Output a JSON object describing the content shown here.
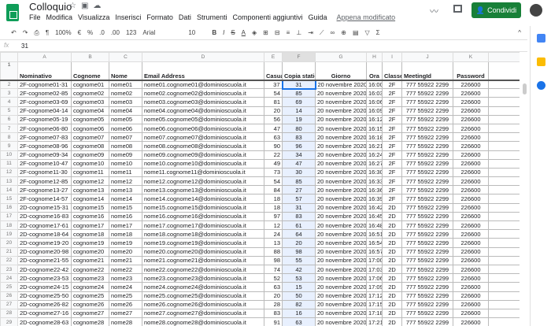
{
  "app": {
    "title": "Colloquio",
    "menu": [
      "File",
      "Modifica",
      "Visualizza",
      "Inserisci",
      "Formato",
      "Dati",
      "Strumenti",
      "Componenti aggiuntivi",
      "Guida"
    ],
    "last_edit": "Appena modificato",
    "share_label": "Condividi",
    "accent": "#188038"
  },
  "toolbar": {
    "zoom": "100%",
    "currency": "€",
    "percent": "%",
    "dec_less": ".0",
    "dec_more": ".00",
    "format": "123",
    "font": "Arial",
    "size": "10",
    "bold": "B",
    "italic": "I",
    "strike": "S",
    "color": "A",
    "sum": "Σ"
  },
  "formula": {
    "fx": "fx",
    "value": "31"
  },
  "columns": [
    "A",
    "B",
    "C",
    "D",
    "E",
    "F",
    "G",
    "H",
    "I",
    "J",
    "K",
    ""
  ],
  "headers": [
    "Nominativo",
    "Cognome",
    "Nome",
    "Email Address",
    "Casuale",
    "Copia statica",
    "Giorno",
    "Ora",
    "Classe",
    "MeetingId",
    "Password",
    ""
  ],
  "rows": [
    [
      "2F-cognome01-31",
      "cognome01",
      "nome01",
      "nome01.cognome01@dominioscuola.it",
      "37",
      "31",
      "20 novembre 2020",
      "16:00",
      "2F",
      "777 55922 2299",
      "226600"
    ],
    [
      "2F-cognome02-85",
      "cognome02",
      "nome02",
      "nome02.cognome02@dominioscuola.it",
      "54",
      "85",
      "20 novembre 2020",
      "16:03",
      "2F",
      "777 55922 2299",
      "226600"
    ],
    [
      "2F-cognome03-69",
      "cognome03",
      "nome03",
      "nome03.cognome03@dominioscuola.it",
      "81",
      "69",
      "20 novembre 2020",
      "16:06",
      "2F",
      "777 55922 2299",
      "226600"
    ],
    [
      "2F-cognome04-14",
      "cognome04",
      "nome04",
      "nome04.cognome04@dominioscuola.it",
      "20",
      "14",
      "20 novembre 2020",
      "16:09",
      "2F",
      "777 55922 2299",
      "226600"
    ],
    [
      "2F-cognome05-19",
      "cognome05",
      "nome05",
      "nome05.cognome05@dominioscuola.it",
      "56",
      "19",
      "20 novembre 2020",
      "16:12",
      "2F",
      "777 55922 2299",
      "226600"
    ],
    [
      "2F-cognome06-80",
      "cognome06",
      "nome06",
      "nome06.cognome06@dominioscuola.it",
      "47",
      "80",
      "20 novembre 2020",
      "16:15",
      "2F",
      "777 55922 2299",
      "226600"
    ],
    [
      "2F-cognome07-83",
      "cognome07",
      "nome07",
      "nome07.cognome07@dominioscuola.it",
      "63",
      "83",
      "20 novembre 2020",
      "16:18",
      "2F",
      "777 55922 2299",
      "226600"
    ],
    [
      "2F-cognome08-96",
      "cognome08",
      "nome08",
      "nome08.cognome08@dominioscuola.it",
      "90",
      "96",
      "20 novembre 2020",
      "16:21",
      "2F",
      "777 55922 2299",
      "226600"
    ],
    [
      "2F-cognome09-34",
      "cognome09",
      "nome09",
      "nome09.cognome09@dominioscuola.it",
      "22",
      "34",
      "20 novembre 2020",
      "16:24",
      "2F",
      "777 55922 2299",
      "226600"
    ],
    [
      "2F-cognome10-47",
      "cognome10",
      "nome10",
      "nome10.cognome10@dominioscuola.it",
      "49",
      "47",
      "20 novembre 2020",
      "16:27",
      "2F",
      "777 55922 2299",
      "226600"
    ],
    [
      "2F-cognome11-30",
      "cognome11",
      "nome11",
      "nome11.cognome11@dominioscuola.it",
      "73",
      "30",
      "20 novembre 2020",
      "16:30",
      "2F",
      "777 55922 2299",
      "226600"
    ],
    [
      "2F-cognome12-85",
      "cognome12",
      "nome12",
      "nome12.cognome12@dominioscuola.it",
      "54",
      "85",
      "20 novembre 2020",
      "16:33",
      "2F",
      "777 55922 2299",
      "226600"
    ],
    [
      "2F-cognome13-27",
      "cognome13",
      "nome13",
      "nome13.cognome13@dominioscuola.it",
      "84",
      "27",
      "20 novembre 2020",
      "16:36",
      "2F",
      "777 55922 2299",
      "226600"
    ],
    [
      "2F-cognome14-57",
      "cognome14",
      "nome14",
      "nome14.cognome14@dominioscuola.it",
      "18",
      "57",
      "20 novembre 2020",
      "16:39",
      "2F",
      "777 55922 2299",
      "226600"
    ],
    [
      "2D-cognome15-31",
      "cognome15",
      "nome15",
      "nome15.cognome15@dominioscuola.it",
      "18",
      "31",
      "20 novembre 2020",
      "16:42",
      "2D",
      "777 55922 2299",
      "226600"
    ],
    [
      "2D-cognome16-83",
      "cognome16",
      "nome16",
      "nome16.cognome16@dominioscuola.it",
      "97",
      "83",
      "20 novembre 2020",
      "16:45",
      "2D",
      "777 55922 2299",
      "226600"
    ],
    [
      "2D-cognome17-61",
      "cognome17",
      "nome17",
      "nome17.cognome17@dominioscuola.it",
      "12",
      "61",
      "20 novembre 2020",
      "16:48",
      "2D",
      "777 55922 2299",
      "226600"
    ],
    [
      "2D-cognome18-64",
      "cognome18",
      "nome18",
      "nome18.cognome18@dominioscuola.it",
      "24",
      "64",
      "20 novembre 2020",
      "16:51",
      "2D",
      "777 55922 2299",
      "226600"
    ],
    [
      "2D-cognome19-20",
      "cognome19",
      "nome19",
      "nome19.cognome19@dominioscuola.it",
      "13",
      "20",
      "20 novembre 2020",
      "16:54",
      "2D",
      "777 55922 2299",
      "226600"
    ],
    [
      "2D-cognome20-98",
      "cognome20",
      "nome20",
      "nome20.cognome20@dominioscuola.it",
      "88",
      "98",
      "20 novembre 2020",
      "16:57",
      "2D",
      "777 55922 2299",
      "226600"
    ],
    [
      "2D-cognome21-55",
      "cognome21",
      "nome21",
      "nome21.cognome21@dominioscuola.it",
      "98",
      "55",
      "20 novembre 2020",
      "17:00",
      "2D",
      "777 55922 2299",
      "226600"
    ],
    [
      "2D-cognome22-42",
      "cognome22",
      "nome22",
      "nome22.cognome22@dominioscuola.it",
      "74",
      "42",
      "20 novembre 2020",
      "17:03",
      "2D",
      "777 55922 2299",
      "226600"
    ],
    [
      "2D-cognome23-53",
      "cognome23",
      "nome23",
      "nome23.cognome23@dominioscuola.it",
      "52",
      "53",
      "20 novembre 2020",
      "17:06",
      "2D",
      "777 55922 2299",
      "226600"
    ],
    [
      "2D-cognome24-15",
      "cognome24",
      "nome24",
      "nome24.cognome24@dominioscuola.it",
      "63",
      "15",
      "20 novembre 2020",
      "17:09",
      "2D",
      "777 55922 2299",
      "226600"
    ],
    [
      "2D-cognome25-50",
      "cognome25",
      "nome25",
      "nome25.cognome25@dominioscuola.it",
      "20",
      "50",
      "20 novembre 2020",
      "17:12",
      "2D",
      "777 55922 2299",
      "226600"
    ],
    [
      "2D-cognome26-82",
      "cognome26",
      "nome26",
      "nome26.cognome26@dominioscuola.it",
      "28",
      "82",
      "20 novembre 2020",
      "17:15",
      "2D",
      "777 55922 2299",
      "226600"
    ],
    [
      "2D-cognome27-16",
      "cognome27",
      "nome27",
      "nome27.cognome27@dominioscuola.it",
      "83",
      "16",
      "20 novembre 2020",
      "17:18",
      "2D",
      "777 55922 2299",
      "226600"
    ],
    [
      "2D-cognome28-63",
      "cognome28",
      "nome28",
      "nome28.cognome28@dominioscuola.it",
      "91",
      "63",
      "20 novembre 2020",
      "17:21",
      "2D",
      "777 55922 2299",
      "226600"
    ]
  ],
  "selection": {
    "cell": "F2",
    "column": "F"
  }
}
